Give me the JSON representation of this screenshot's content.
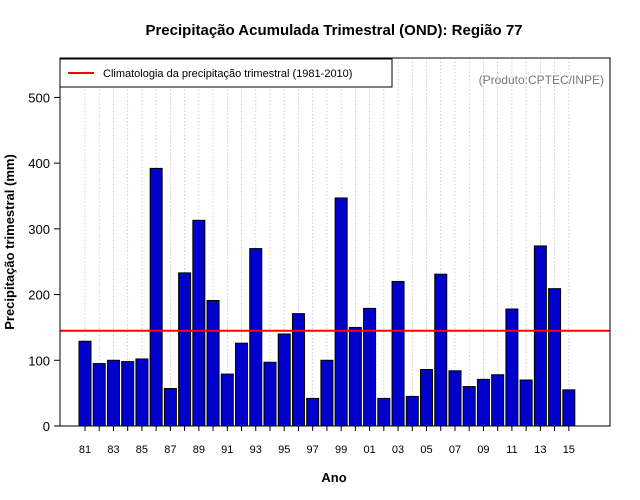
{
  "chart_data": {
    "type": "bar",
    "title": "Precipitação Acumulada Trimestral (OND): Região 77",
    "xlabel": "Ano",
    "ylabel": "Precipitação trimestral (mm)",
    "ylim": [
      0,
      560
    ],
    "yticks": [
      0,
      100,
      200,
      300,
      400,
      500
    ],
    "categories": [
      "81",
      "82",
      "83",
      "84",
      "85",
      "86",
      "87",
      "88",
      "89",
      "90",
      "91",
      "92",
      "93",
      "94",
      "95",
      "96",
      "97",
      "98",
      "99",
      "00",
      "01",
      "02",
      "03",
      "04",
      "05",
      "06",
      "07",
      "08",
      "09",
      "10",
      "11",
      "12",
      "13",
      "14",
      "15"
    ],
    "xtick_labels": [
      "81",
      "83",
      "85",
      "87",
      "89",
      "91",
      "93",
      "95",
      "97",
      "99",
      "01",
      "03",
      "05",
      "07",
      "09",
      "11",
      "13",
      "15"
    ],
    "values": [
      129,
      95,
      100,
      98,
      102,
      392,
      57,
      233,
      313,
      191,
      79,
      126,
      270,
      97,
      140,
      171,
      42,
      100,
      347,
      150,
      179,
      42,
      220,
      45,
      86,
      231,
      84,
      60,
      71,
      78,
      178,
      70,
      274,
      209,
      55
    ],
    "bar_color": "#0000cd",
    "reference_line": {
      "label": "Climatologia da precipitação trimestral (1981-2010)",
      "value": 145,
      "color": "#ff0000"
    },
    "credit": "(Produto:CPTEC/INPE)",
    "legend_position": "top-left",
    "grid": "vertical dotted"
  }
}
